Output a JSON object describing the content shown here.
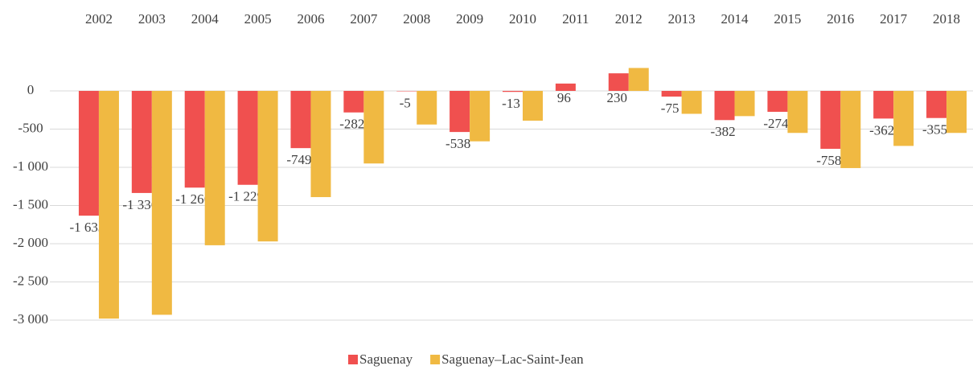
{
  "chart_data": {
    "type": "bar",
    "categories": [
      "2002",
      "2003",
      "2004",
      "2005",
      "2006",
      "2007",
      "2008",
      "2009",
      "2010",
      "2011",
      "2012",
      "2013",
      "2014",
      "2015",
      "2016",
      "2017",
      "2018"
    ],
    "series": [
      {
        "name": "Saguenay",
        "color": "#f0504f",
        "values": [
          -1633,
          -1336,
          -1266,
          -1229,
          -749,
          -282,
          -5,
          -538,
          -13,
          96,
          230,
          -75,
          -382,
          -274,
          -758,
          -362,
          -355
        ],
        "value_labels": [
          "-1 633",
          "-1 336",
          "-1 266",
          "-1 229",
          "-749",
          "-282",
          "-5",
          "-538",
          "-13",
          "96",
          "230",
          "-75",
          "-382",
          "-274",
          "-758",
          "-362",
          "-355"
        ]
      },
      {
        "name": "Saguenay–Lac-Saint-Jean",
        "color": "#f0b942",
        "values": [
          -2980,
          -2930,
          -2020,
          -1970,
          -1390,
          -950,
          -440,
          -660,
          -390,
          0,
          300,
          -300,
          -330,
          -550,
          -1010,
          -720,
          -550
        ]
      }
    ],
    "ylim": [
      -3000,
      500
    ],
    "yticks": [
      0,
      -500,
      {
        "value": -1000,
        "label": "-1 000"
      },
      {
        "value": -1500,
        "label": "-1 500"
      },
      {
        "value": -2000,
        "label": "-2 000"
      },
      {
        "value": -2500,
        "label": "-2 500"
      },
      {
        "value": -3000,
        "label": "-3 000"
      }
    ],
    "grid": true,
    "legend": "bottom"
  }
}
